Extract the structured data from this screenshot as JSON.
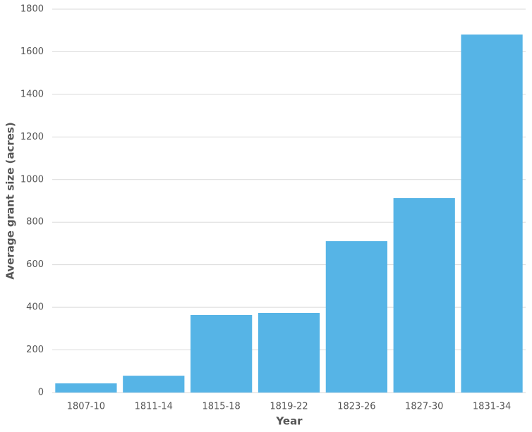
{
  "chart_data": {
    "type": "bar",
    "x_label": "Year",
    "y_label": "Average grant size (acres)",
    "categories": [
      "1807-10",
      "1811-14",
      "1815-18",
      "1819-22",
      "1823-26",
      "1827-30",
      "1831-34"
    ],
    "values": [
      43,
      79,
      364,
      374,
      711,
      913,
      1681
    ],
    "color": "#56b4e6",
    "ylim": [
      0,
      1800
    ],
    "yticks": [
      0,
      200,
      400,
      600,
      800,
      1000,
      1200,
      1400,
      1600,
      1800
    ],
    "grid": true
  }
}
